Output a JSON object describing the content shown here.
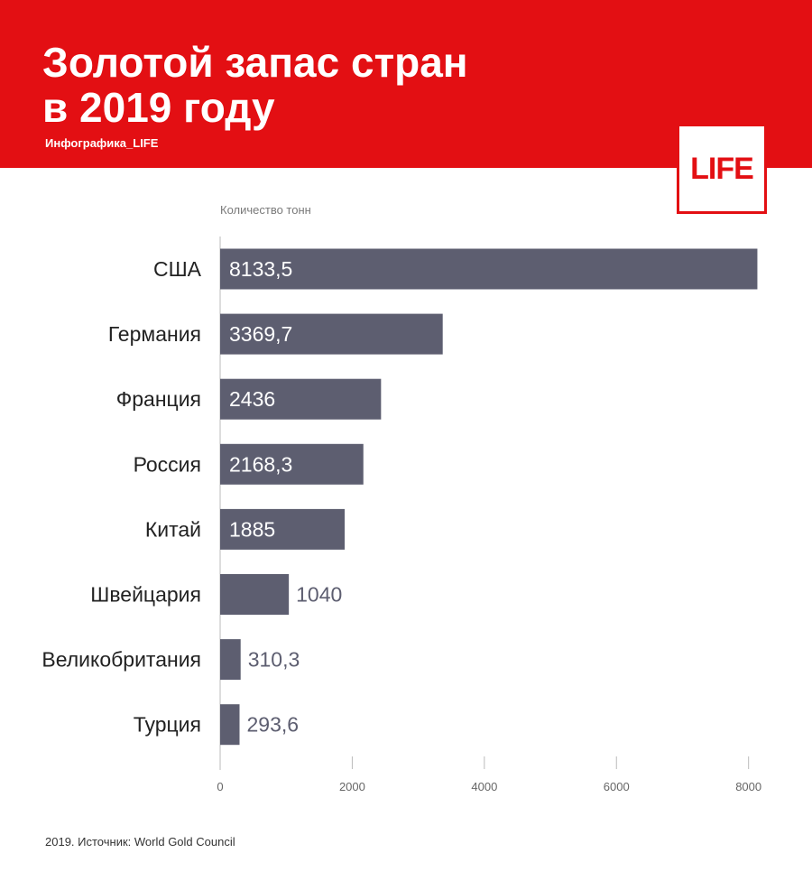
{
  "header": {
    "title_line1": "Золотой запас стран",
    "title_line2": "в 2019 году",
    "credit": "Инфографика_LIFE",
    "logo": "LIFE"
  },
  "colors": {
    "header_bg": "#e30f13",
    "bar": "#5d5e70",
    "label_inside": "#ffffff",
    "label_outside": "#5d5e70",
    "axis": "#bbbbbb"
  },
  "chart_data": {
    "type": "bar",
    "orientation": "horizontal",
    "xlabel": "Количество тонн",
    "categories": [
      "США",
      "Германия",
      "Франция",
      "Россия",
      "Китай",
      "Швейцария",
      "Великобритания",
      "Турция"
    ],
    "values": [
      8133.5,
      3369.7,
      2436,
      2168.3,
      1885,
      1040,
      310.3,
      293.6
    ],
    "value_labels": [
      "8133,5",
      "3369,7",
      "2436",
      "2168,3",
      "1885",
      "1040",
      "310,3",
      "293,6"
    ],
    "xlim": [
      0,
      8100
    ],
    "xticks": [
      0,
      2000,
      4000,
      6000,
      8000
    ],
    "grid": false
  },
  "footer": {
    "source": "2019. Источник: World Gold Council"
  }
}
